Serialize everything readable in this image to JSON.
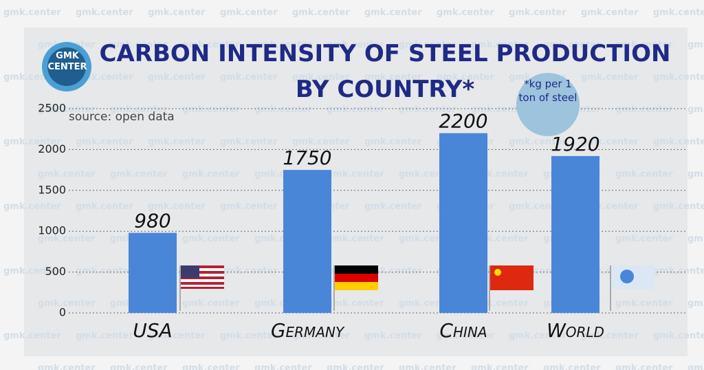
{
  "chart_data": {
    "type": "bar",
    "title": "CARBON INTENSITY OF STEEL PRODUCTION BY COUNTRY*",
    "logo": "GMK CENTER",
    "note": "*kg per 1 ton of steel",
    "source": "source: open data",
    "watermark": "gmk.center",
    "categories": [
      "USA",
      "Germany",
      "China",
      "World"
    ],
    "values": [
      980,
      1750,
      2200,
      1920
    ],
    "color": "#4a86d8",
    "ylim": [
      0,
      2500
    ],
    "yticks": [
      0,
      500,
      1000,
      1500,
      2000,
      2500
    ],
    "grid": true
  }
}
